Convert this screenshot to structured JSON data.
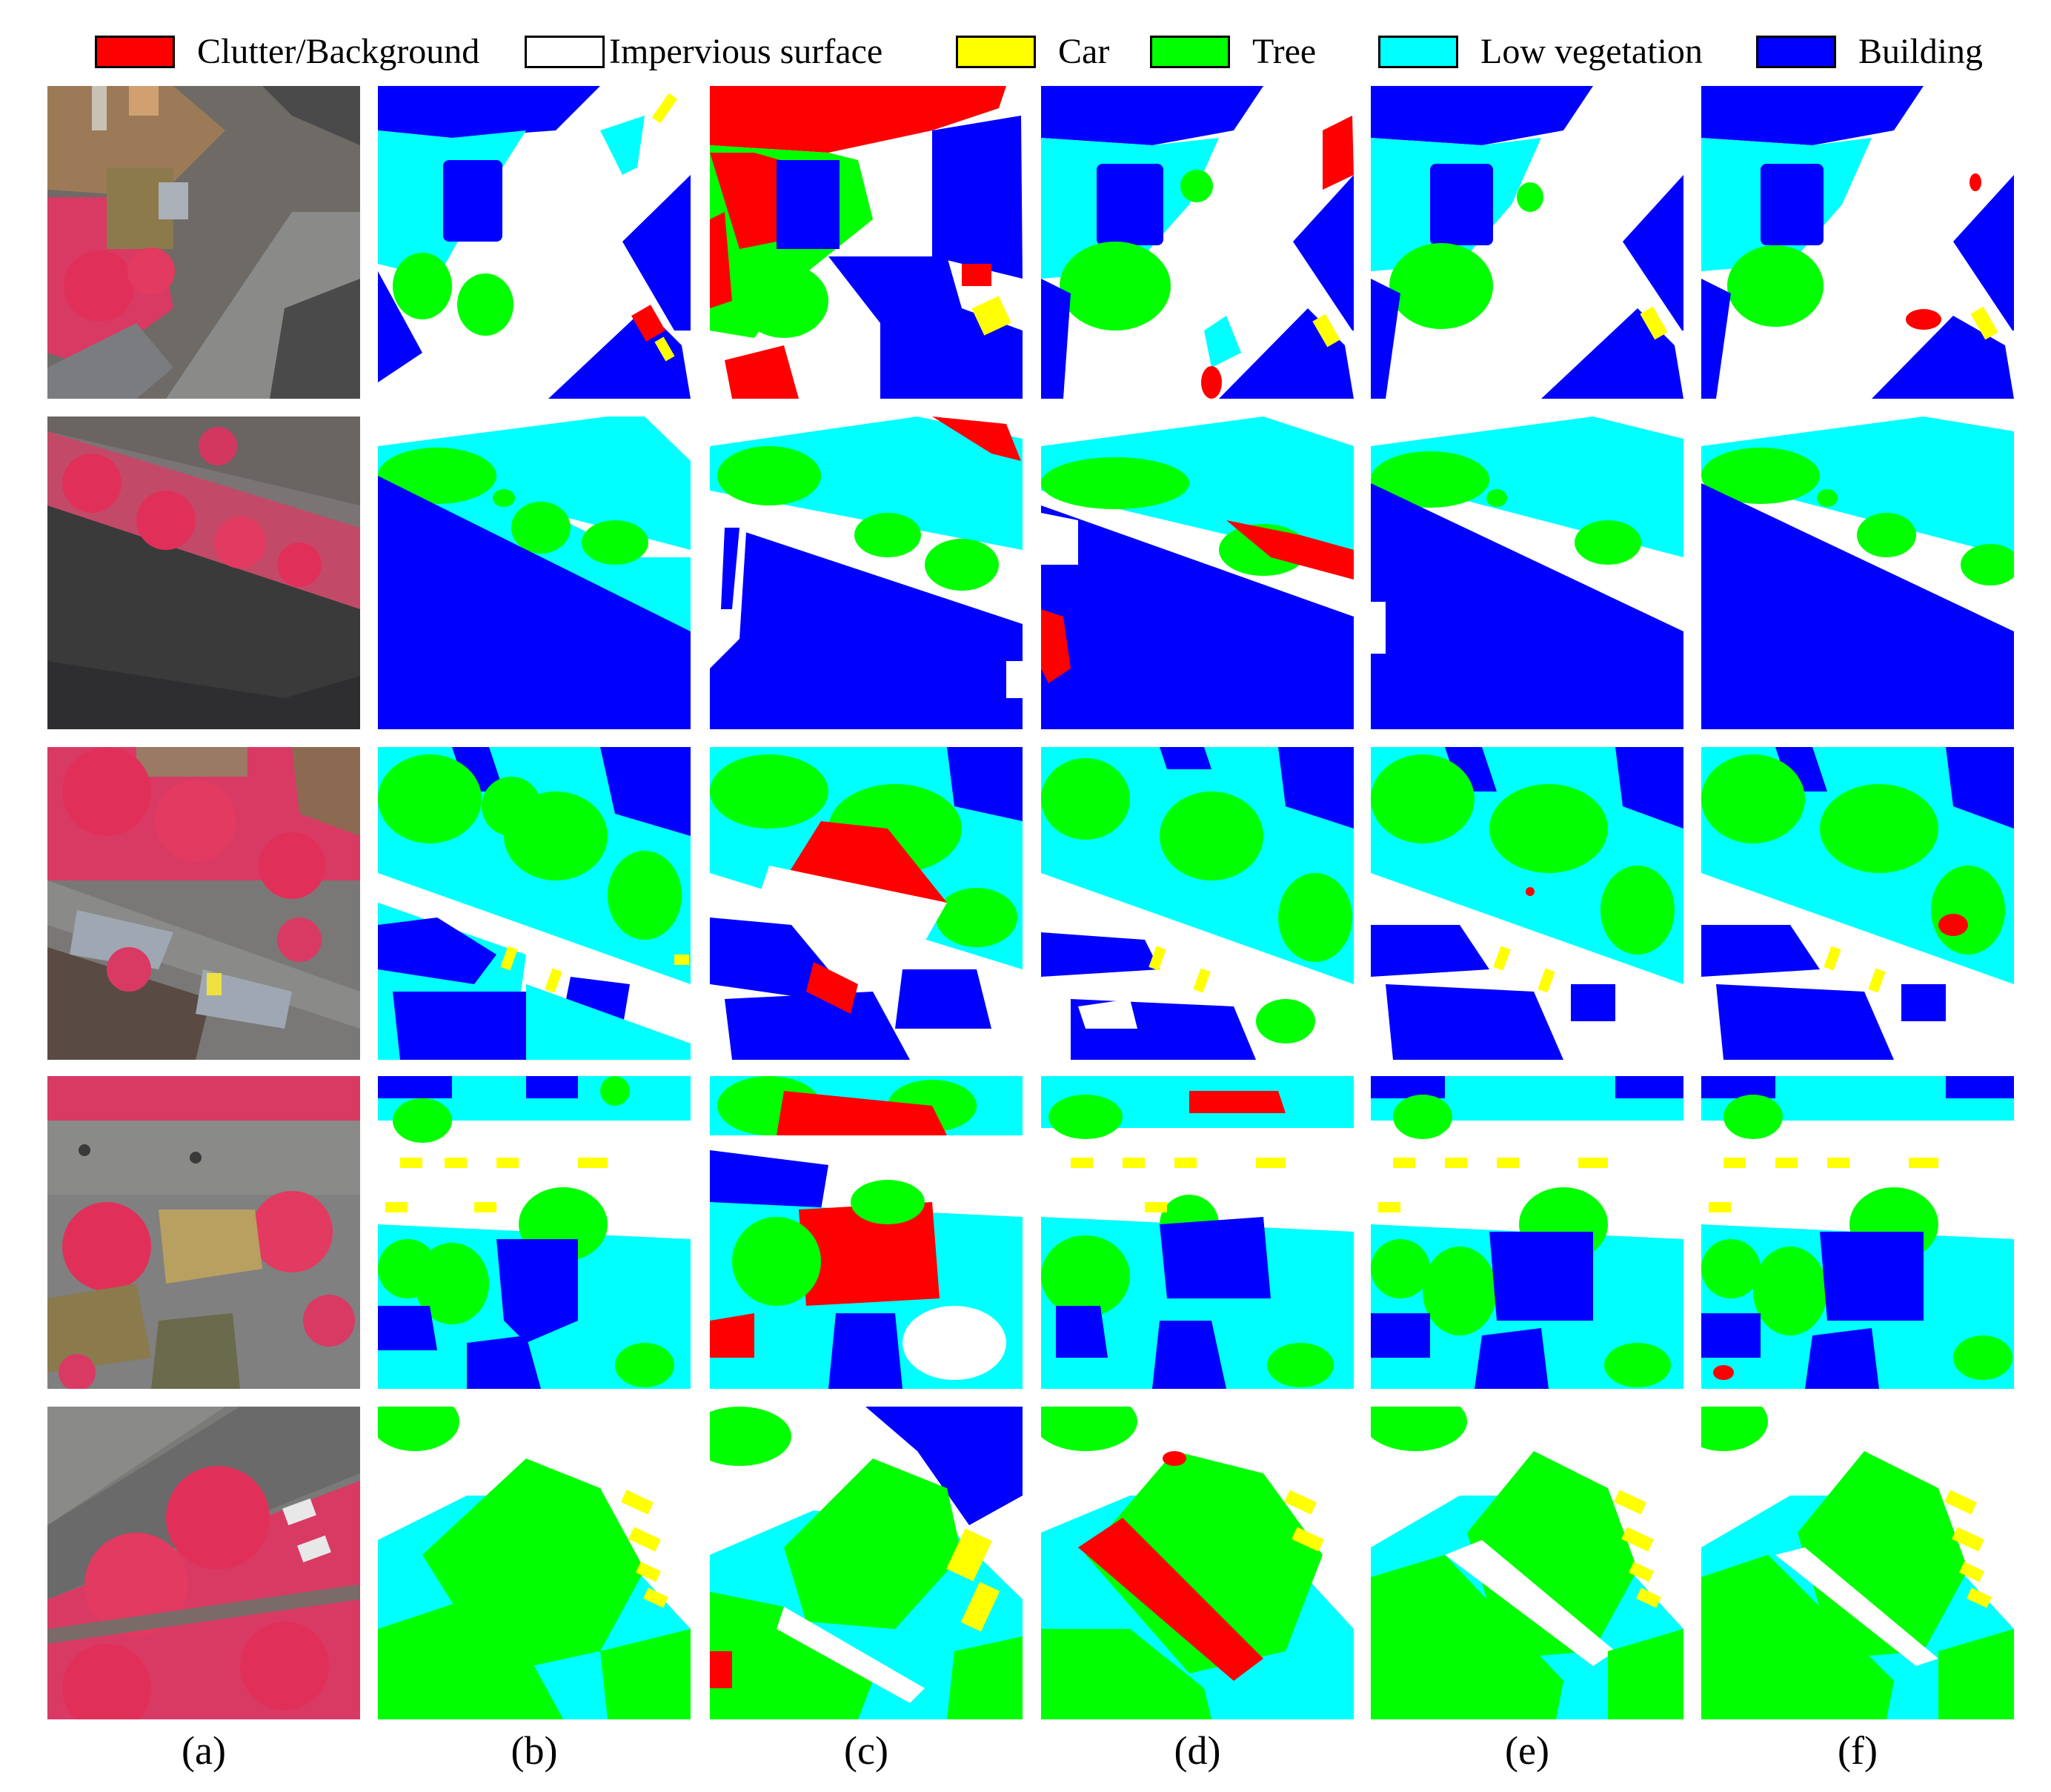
{
  "legend": [
    {
      "label": "Clutter/Background",
      "color": "#ff0000"
    },
    {
      "label": "Impervious surface",
      "color": "#ffffff"
    },
    {
      "label": "Car",
      "color": "#ffff00"
    },
    {
      "label": "Tree",
      "color": "#00ff00"
    },
    {
      "label": "Low vegetation",
      "color": "#00ffff"
    },
    {
      "label": "Building",
      "color": "#0000ff"
    }
  ],
  "columns": [
    "(a)",
    "(b)",
    "(c)",
    "(d)",
    "(e)",
    "(f)"
  ]
}
